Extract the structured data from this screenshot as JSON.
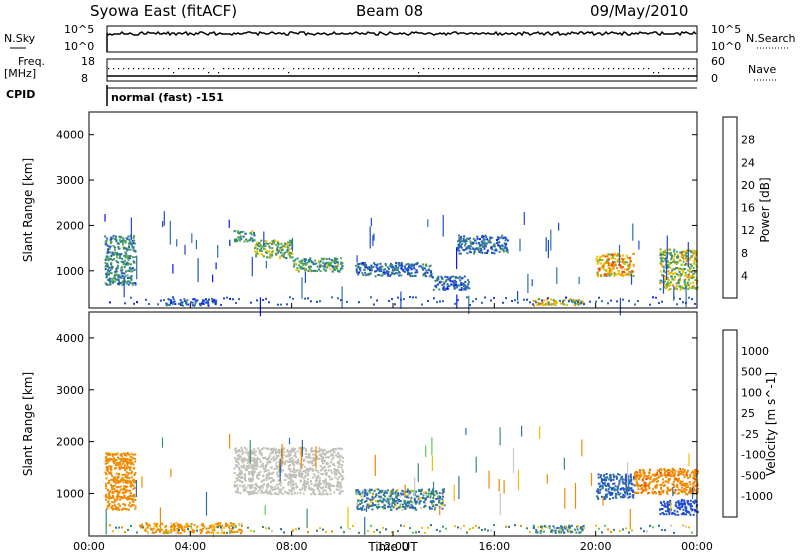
{
  "header": {
    "station": "Syowa East (fitACF)",
    "beam": "Beam 08",
    "date": "09/May/2010"
  },
  "top_panels": {
    "nsky_label": "N.Sky",
    "nsky_ticks": [
      "10^5",
      "10^0"
    ],
    "nsearch_label": "N.Search",
    "nsearch_ticks": [
      "10^5",
      "10^0"
    ],
    "freq_label": "Freq.",
    "freq_unit": "[MHz]",
    "freq_ticks": [
      "18",
      "8"
    ],
    "nave_label": "Nave",
    "nave_ticks": [
      "60",
      "0"
    ],
    "cpid_label": "CPID",
    "cpid_text": "normal (fast) -151"
  },
  "colors": {
    "power": [
      "#0a14ff",
      "#1e4bd2",
      "#2f6fa8",
      "#3c8f6a",
      "#55b04f",
      "#f0c000",
      "#f08a00",
      "#f04b00",
      "#e00000"
    ],
    "velocity": [
      "#e00000",
      "#f04b00",
      "#f08a00",
      "#f0c000",
      "#c8c8c8",
      "#c8c8c8",
      "#55d04f",
      "#3c8f6a",
      "#2f6fa8",
      "#1e4bd2",
      "#0a14ff"
    ],
    "ground_scatter": "#c0c0b8"
  },
  "chart_data": [
    {
      "type": "heatmap",
      "title": "",
      "xlabel": "",
      "ylabel": "Slant Range [km]",
      "xlim": [
        0,
        24
      ],
      "ylim": [
        180,
        4500
      ],
      "x_ticks": [
        "00:00",
        "04:00",
        "08:00",
        "12:00",
        "16:00",
        "20:00",
        "00:00"
      ],
      "y_ticks": [
        1000,
        2000,
        3000,
        4000
      ],
      "colorbar_label": "Power [dB]",
      "colorbar_ticks": [
        "4",
        "8",
        "12",
        "16",
        "20",
        "24",
        "28"
      ],
      "colorbar_range": [
        0,
        30
      ],
      "regions": [
        {
          "t0": 0.6,
          "t1": 1.8,
          "r0": 700,
          "r1": 1800,
          "value": 10
        },
        {
          "t0": 5.7,
          "t1": 6.5,
          "r0": 1650,
          "r1": 1900,
          "value": 12
        },
        {
          "t0": 6.5,
          "t1": 8.0,
          "r0": 1300,
          "r1": 1700,
          "value": 14
        },
        {
          "t0": 8.0,
          "t1": 10.0,
          "r0": 1000,
          "r1": 1300,
          "value": 12
        },
        {
          "t0": 10.5,
          "t1": 13.5,
          "r0": 900,
          "r1": 1200,
          "value": 8
        },
        {
          "t0": 13.5,
          "t1": 15.0,
          "r0": 600,
          "r1": 900,
          "value": 7
        },
        {
          "t0": 14.5,
          "t1": 16.5,
          "r0": 1400,
          "r1": 1800,
          "value": 8
        },
        {
          "t0": 17.5,
          "t1": 19.5,
          "r0": 250,
          "r1": 400,
          "value": 18
        },
        {
          "t0": 20.0,
          "t1": 21.5,
          "r0": 900,
          "r1": 1400,
          "value": 20
        },
        {
          "t0": 22.5,
          "t1": 24.0,
          "r0": 600,
          "r1": 1500,
          "value": 16
        },
        {
          "t0": 3.0,
          "t1": 5.0,
          "r0": 250,
          "r1": 400,
          "value": 6
        }
      ]
    },
    {
      "type": "heatmap",
      "title": "",
      "xlabel": "Time UT",
      "ylabel": "Slant Range [km]",
      "xlim": [
        0,
        24
      ],
      "ylim": [
        180,
        4500
      ],
      "x_ticks": [
        "00:00",
        "04:00",
        "08:00",
        "12:00",
        "16:00",
        "20:00",
        "00:00"
      ],
      "y_ticks": [
        1000,
        2000,
        3000,
        4000
      ],
      "colorbar_label": "Velocity [m s^-1]",
      "colorbar_ticks": [
        "1000",
        "500",
        "100",
        "25",
        "-25",
        "-100",
        "-500",
        "-1000"
      ],
      "colorbar_range": [
        -1250,
        1250
      ],
      "regions": [
        {
          "t0": 0.6,
          "t1": 1.8,
          "r0": 700,
          "r1": 1800,
          "value": -300
        },
        {
          "t0": 5.7,
          "t1": 10.0,
          "r0": 1000,
          "r1": 1900,
          "value": 0,
          "ground_scatter": true
        },
        {
          "t0": 10.5,
          "t1": 14.0,
          "r0": 700,
          "r1": 1100,
          "value": 150
        },
        {
          "t0": 17.5,
          "t1": 19.5,
          "r0": 250,
          "r1": 400,
          "value": 120
        },
        {
          "t0": 20.0,
          "t1": 21.5,
          "r0": 900,
          "r1": 1400,
          "value": 400
        },
        {
          "t0": 21.5,
          "t1": 24.0,
          "r0": 1000,
          "r1": 1500,
          "value": -350
        },
        {
          "t0": 22.5,
          "t1": 24.0,
          "r0": 600,
          "r1": 900,
          "value": 700
        },
        {
          "t0": 2.0,
          "t1": 6.0,
          "r0": 250,
          "r1": 450,
          "value": -200
        }
      ]
    }
  ]
}
